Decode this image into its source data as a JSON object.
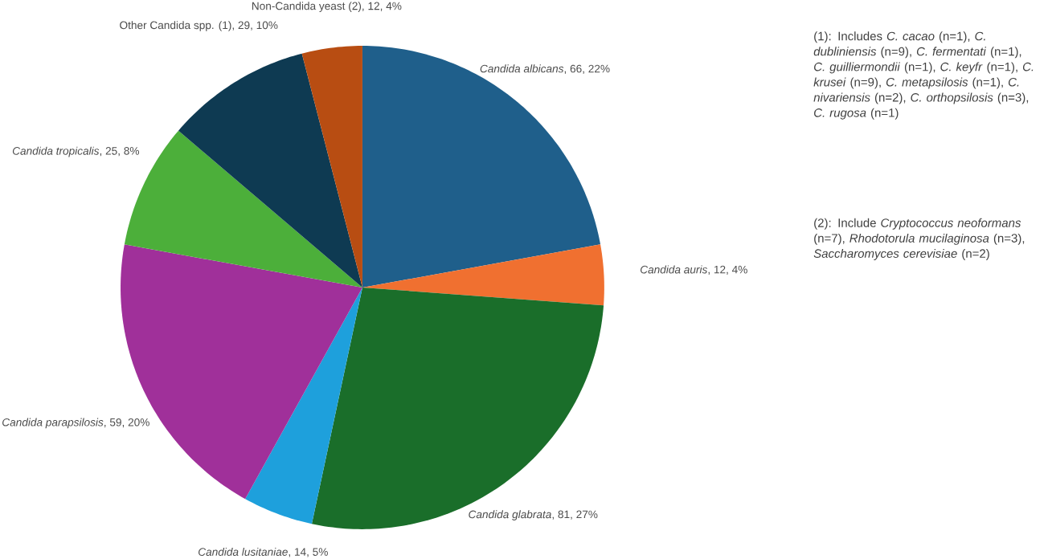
{
  "chart_data": {
    "type": "pie",
    "categories": [
      "*Candida albicans*, 66, 22%",
      "*Candida auris*, 12, 4%",
      "*Candida glabrata*, 81, 27%",
      "*Candida lusitaniae*, 14, 5%",
      "*Candida parapsilosis*, 59, 20%",
      "*Candida tropicalis*, 25, 8%",
      "Other Candida spp. (1), 29, 10%",
      "Non-Candida yeast (2), 12, 4%"
    ],
    "values": [
      66,
      12,
      81,
      14,
      59,
      25,
      29,
      12
    ],
    "colors": [
      "#1f5f8b",
      "#f07030",
      "#1a6e2a",
      "#1ea0dc",
      "#a0309a",
      "#4caf3a",
      "#0e3a52",
      "#b84d12"
    ],
    "annotations": [
      "(1): Includes *C. cacao* (n=1), *C. dubliniensis* (n=9), *C. fermentati* (n=1), *C. guilliermondii* (n=1), *C. keyfr* (n=1), *C. krusei* (n=9), *C. metapsilosis* (n=1), *C. nivariensis* (n=2), *C. orthopsilosis* (n=3), *C. rugosa* (n=1)",
      "(2): Include *Cryptococcus neoformans* (n=7), *Rhodotorula mucilaginosa* (n=3), *Saccharomyces cerevisiae* (n=2)"
    ]
  }
}
